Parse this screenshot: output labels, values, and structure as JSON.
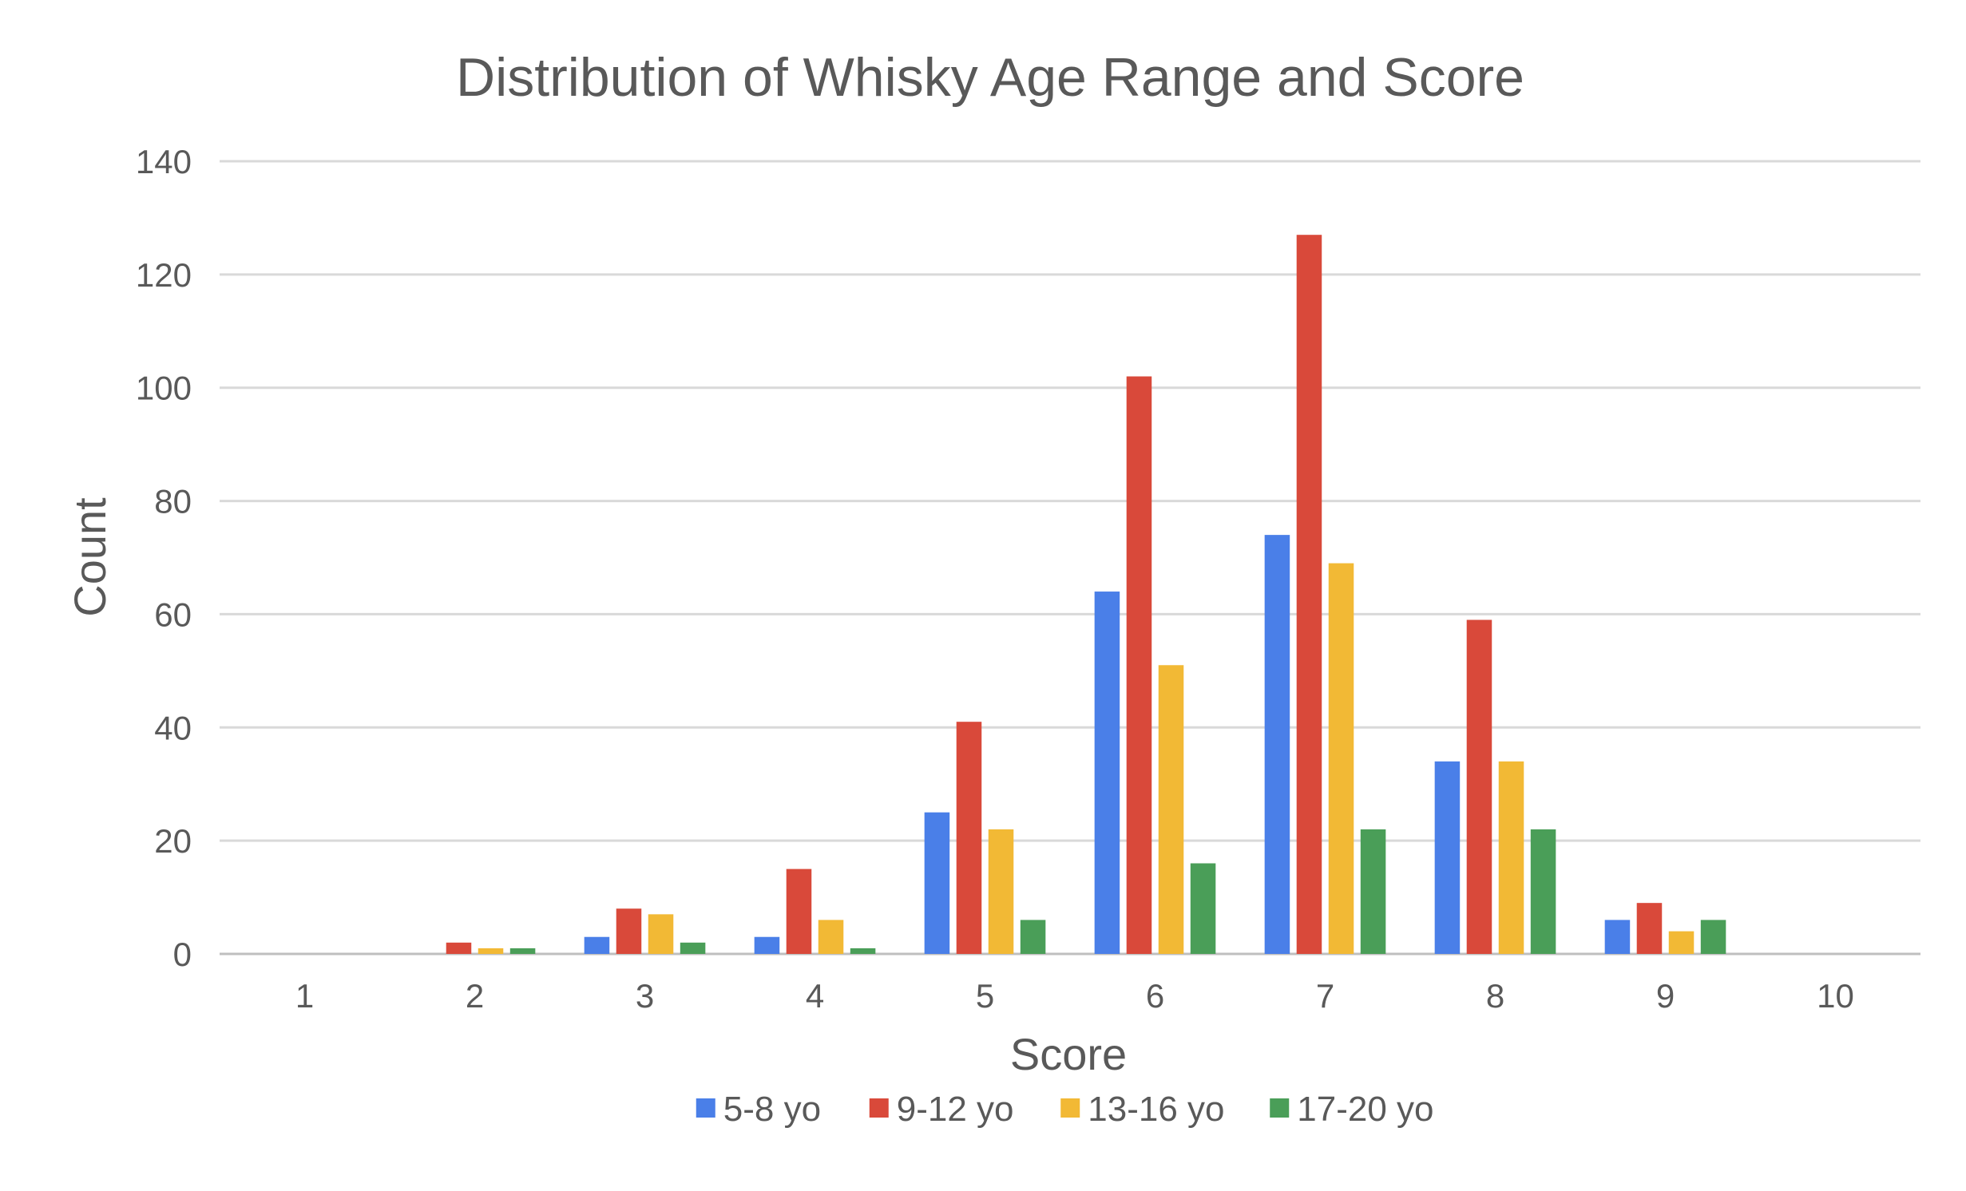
{
  "chart_data": {
    "type": "bar",
    "title": "Distribution of Whisky Age Range and Score",
    "xlabel": "Score",
    "ylabel": "Count",
    "ylim": [
      0,
      140
    ],
    "yticks": [
      0,
      20,
      40,
      60,
      80,
      100,
      120,
      140
    ],
    "grid": true,
    "legend_position": "bottom",
    "categories": [
      "1",
      "2",
      "3",
      "4",
      "5",
      "6",
      "7",
      "8",
      "9",
      "10"
    ],
    "series": [
      {
        "name": "5-8 yo",
        "color": "#4a7fe8",
        "values": [
          0,
          0,
          3,
          3,
          25,
          64,
          74,
          34,
          6,
          0
        ]
      },
      {
        "name": "9-12 yo",
        "color": "#d9493a",
        "values": [
          0,
          2,
          8,
          15,
          41,
          102,
          127,
          59,
          9,
          0
        ]
      },
      {
        "name": "13-16 yo",
        "color": "#f2b935",
        "values": [
          0,
          1,
          7,
          6,
          22,
          51,
          69,
          34,
          4,
          0
        ]
      },
      {
        "name": "17-20 yo",
        "color": "#4a9e58",
        "values": [
          0,
          1,
          2,
          1,
          6,
          16,
          22,
          22,
          6,
          0
        ]
      }
    ]
  }
}
